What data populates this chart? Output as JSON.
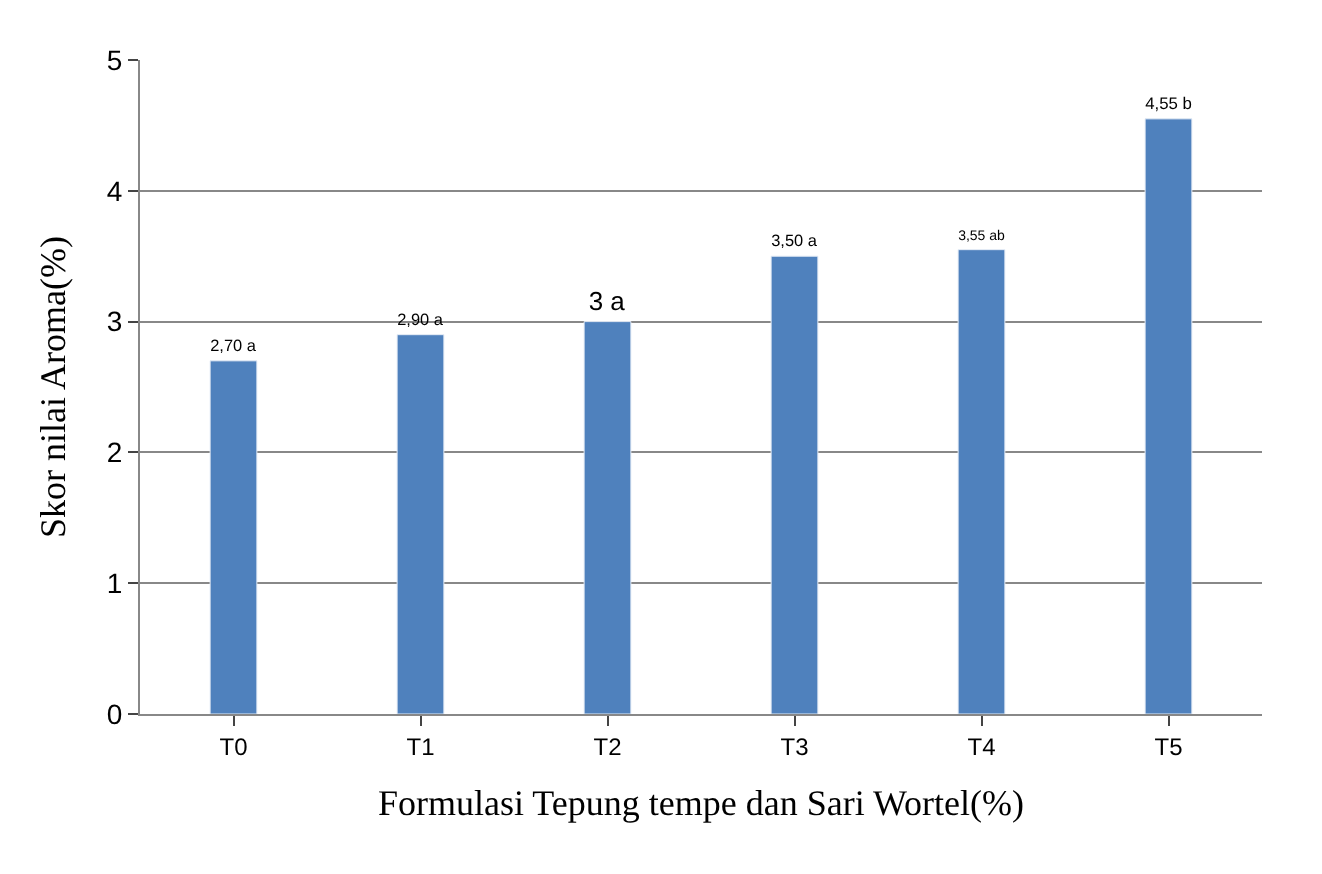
{
  "chart_data": {
    "type": "bar",
    "xlabel": "Formulasi Tepung tempe dan Sari Wortel(%)",
    "ylabel": "Skor nilai Aroma(%)",
    "categories": [
      "T0",
      "T1",
      "T2",
      "T3",
      "T4",
      "T5"
    ],
    "values": [
      2.7,
      2.9,
      3,
      3.5,
      3.55,
      4.55
    ],
    "value_labels": [
      "2,70 a",
      "2,90 a",
      "3 a",
      "3,50 a",
      "3,55 ab",
      "4,55 b"
    ],
    "color": "#4f81bd",
    "ylim": [
      0,
      5
    ],
    "yticks": [
      0,
      1,
      2,
      3,
      4,
      5
    ],
    "grid": "y",
    "legend": false
  }
}
